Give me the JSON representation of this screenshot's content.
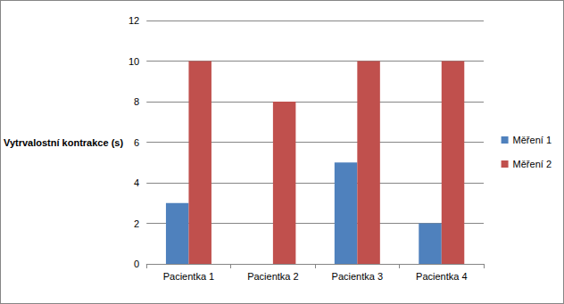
{
  "chart_data": {
    "type": "bar",
    "y_label": "Vytrvalostní kontrakce (s)",
    "categories": [
      "Pacientka 1",
      "Pacientka 2",
      "Pacientka 3",
      "Pacientka 4"
    ],
    "series": [
      {
        "name": "Měření 1",
        "color": "#4f81bd",
        "values": [
          3,
          0,
          5,
          2
        ]
      },
      {
        "name": "Měření 2",
        "color": "#c0504d",
        "values": [
          10,
          8,
          10,
          10
        ]
      }
    ],
    "ylim": [
      0,
      12
    ],
    "yticks": [
      0,
      2,
      4,
      6,
      8,
      10,
      12
    ],
    "grid": true,
    "legend": "right"
  }
}
